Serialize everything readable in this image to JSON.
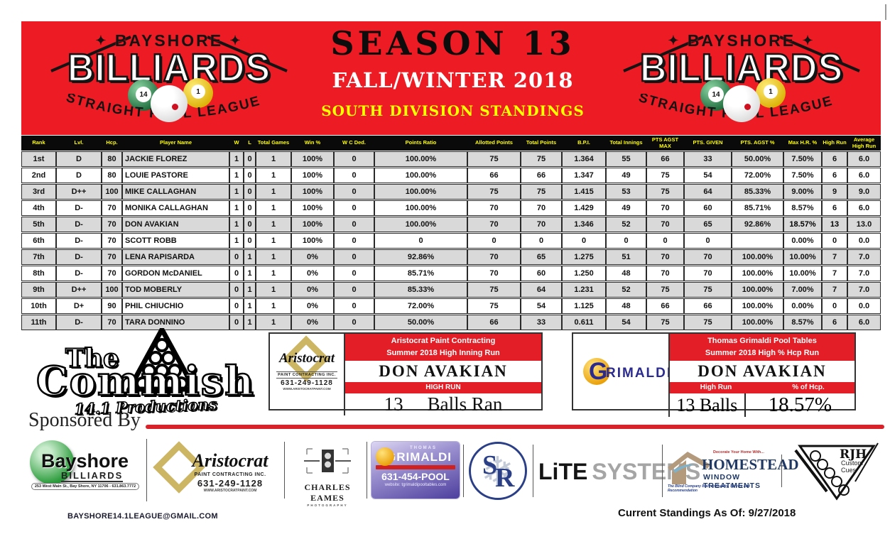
{
  "colors": {
    "red": "#ED1C24",
    "yellow": "#FFFF00",
    "row_gray": "#D9D9D9",
    "highlight_hot": "#FF7300"
  },
  "header": {
    "season_title": "SEASON 13",
    "season_subtitle": "FALL/WINTER 2018",
    "division_title": "SOUTH DIVISION STANDINGS",
    "logo": {
      "star": "✦",
      "top": "BAYSHORE",
      "main": "BILLIARDS",
      "arc": "STRAIGHT POOL LEAGUE",
      "ball14": "14",
      "ball1": "1"
    }
  },
  "standings": {
    "columns": [
      "Rank",
      "Lvl.",
      "Hcp.",
      "Player Name",
      "W",
      "L",
      "Total Games",
      "Win %",
      "W C Ded.",
      "Points Ratio",
      "Allotted Points",
      "Total Points",
      "B.P.I.",
      "Total Innings",
      "PTS AGST MAX",
      "PTS. GIVEN",
      "PTS. AGST %",
      "Max H.R. %",
      "High Run",
      "Average High Run"
    ],
    "rows": [
      [
        "1st",
        "D",
        "80",
        "JACKIE FLOREZ",
        "1",
        "0",
        "1",
        "100%",
        "0",
        "100.00%",
        "75",
        "75",
        "1.364",
        "55",
        "66",
        "33",
        "50.00%",
        "7.50%",
        "6",
        "6.0"
      ],
      [
        "2nd",
        "D",
        "80",
        "LOUIE PASTORE",
        "1",
        "0",
        "1",
        "100%",
        "0",
        "100.00%",
        "66",
        "66",
        "1.347",
        "49",
        "75",
        "54",
        "72.00%",
        "7.50%",
        "6",
        "6.0"
      ],
      [
        "3rd",
        "D++",
        "100",
        "MIKE CALLAGHAN",
        "1",
        "0",
        "1",
        "100%",
        "0",
        "100.00%",
        "75",
        "75",
        "1.415",
        "53",
        "75",
        "64",
        "85.33%",
        "9.00%",
        "9",
        "9.0"
      ],
      [
        "4th",
        "D-",
        "70",
        "MONIKA CALLAGHAN",
        "1",
        "0",
        "1",
        "100%",
        "0",
        "100.00%",
        "70",
        "70",
        "1.429",
        "49",
        "70",
        "60",
        "85.71%",
        "8.57%",
        "6",
        "6.0"
      ],
      [
        "5th",
        "D-",
        "70",
        "DON AVAKIAN",
        "1",
        "0",
        "1",
        "100%",
        "0",
        "100.00%",
        "70",
        "70",
        "1.346",
        "52",
        "70",
        "65",
        "92.86%",
        "18.57%",
        "13",
        "13.0"
      ],
      [
        "6th",
        "D-",
        "70",
        "SCOTT ROBB",
        "1",
        "0",
        "1",
        "100%",
        "0",
        "0",
        "0",
        "0",
        "0",
        "0",
        "0",
        "0",
        "",
        "0.00%",
        "0",
        "0.0"
      ],
      [
        "7th",
        "D-",
        "70",
        "LENA RAPISARDA",
        "0",
        "1",
        "1",
        "0%",
        "0",
        "92.86%",
        "70",
        "65",
        "1.275",
        "51",
        "70",
        "70",
        "100.00%",
        "10.00%",
        "7",
        "7.0"
      ],
      [
        "8th",
        "D-",
        "70",
        "GORDON McDANIEL",
        "0",
        "1",
        "1",
        "0%",
        "0",
        "85.71%",
        "70",
        "60",
        "1.250",
        "48",
        "70",
        "70",
        "100.00%",
        "10.00%",
        "7",
        "7.0"
      ],
      [
        "9th",
        "D++",
        "100",
        "TOD MOBERLY",
        "0",
        "1",
        "1",
        "0%",
        "0",
        "85.33%",
        "75",
        "64",
        "1.231",
        "52",
        "75",
        "75",
        "100.00%",
        "7.00%",
        "7",
        "7.0"
      ],
      [
        "10th",
        "D+",
        "90",
        "PHIL CHIUCHIO",
        "0",
        "1",
        "1",
        "0%",
        "0",
        "72.00%",
        "75",
        "54",
        "1.125",
        "48",
        "66",
        "66",
        "100.00%",
        "0.00%",
        "0",
        "0.0"
      ],
      [
        "11th",
        "D-",
        "70",
        "TARA DONNINO",
        "0",
        "1",
        "1",
        "0%",
        "0",
        "50.00%",
        "66",
        "33",
        "0.611",
        "54",
        "75",
        "75",
        "100.00%",
        "8.57%",
        "6",
        "6.0"
      ]
    ],
    "highlight": {
      "row": 4,
      "cols": [
        17,
        18
      ]
    }
  },
  "commish": {
    "the": "The",
    "name": "Commish",
    "sub": "14.1 Productions"
  },
  "award_left": {
    "logo": {
      "name": "Aristocrat",
      "sub": "PAINT CONTRACTING INC.",
      "phone": "631-249-1128",
      "web": "WWW.ARISTOCRATPAINT.COM"
    },
    "banner1": "Aristocrat Paint Contracting",
    "banner2": "Summer 2018 High Inning Run",
    "player": "DON AVAKIAN",
    "label": "HIGH RUN",
    "value_num": "13",
    "value_text": "Balls Ran"
  },
  "award_right": {
    "logo": {
      "g": "G",
      "rest": "RIMALDI"
    },
    "banner1": "Thomas Grimaldi Pool Tables",
    "banner2": "Summer 2018 High % Hcp Run",
    "player": "DON AVAKIAN",
    "label1": "High Run",
    "label2": "% of Hcp.",
    "value1": "13 Balls",
    "value2": "18.57%"
  },
  "sponsored_by": "Sponsored By",
  "sponsors": {
    "bayshore": {
      "name": "Bayshore",
      "sub": "BILLIARDS",
      "address": "253 West Main St., Bay Shore, NY 11706 - 631.863.7772"
    },
    "aristocrat": {
      "name": "Aristocrat",
      "sub": "PAINT CONTRACTING INC.",
      "phone": "631-249-1128",
      "web": "WWW.ARISTOCRATPAINT.COM"
    },
    "eames": {
      "name": "CHARLES EAMES",
      "sub": "PHOTOGRAPHY"
    },
    "grimaldi": {
      "thomas": "THOMAS",
      "g": "G",
      "rest": "RIMALDI",
      "phone": "631-454-POOL",
      "web": "website: tgrimaldipooltables.com"
    },
    "sr": {
      "s": "S",
      "r": "R",
      "flake": "❄"
    },
    "lite": {
      "word1": "LiTE",
      "word2": "SYSTEMS"
    },
    "homestead": {
      "tag_top": "Decorate Your Home With...",
      "name": "HOMESTEAD",
      "sub": "WINDOW TREATMENTS",
      "tagline": "The Blind Company Built on Quality, Service and Recommendation"
    },
    "rjh": {
      "name": "RJH",
      "sub1": "Custom",
      "sub2": "Cues"
    }
  },
  "footer": {
    "email": "BAYSHORE14.1LEAGUE@GMAIL.COM",
    "as_of": "Current Standings As Of:  9/27/2018"
  }
}
